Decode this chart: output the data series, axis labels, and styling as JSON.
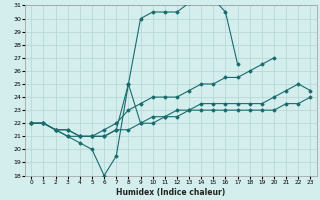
{
  "xlabel": "Humidex (Indice chaleur)",
  "bg_color": "#d4eeee",
  "grid_color": "#b8d8d8",
  "line_color": "#1a6b6b",
  "xlim": [
    -0.5,
    23.5
  ],
  "ylim": [
    18,
    31
  ],
  "xticks": [
    0,
    1,
    2,
    3,
    4,
    5,
    6,
    7,
    8,
    9,
    10,
    11,
    12,
    13,
    14,
    15,
    16,
    17,
    18,
    19,
    20,
    21,
    22,
    23
  ],
  "yticks": [
    18,
    19,
    20,
    21,
    22,
    23,
    24,
    25,
    26,
    27,
    28,
    29,
    30,
    31
  ],
  "lines": [
    {
      "x": [
        0,
        1,
        2,
        3,
        4,
        5,
        6,
        7,
        8,
        9,
        10,
        11,
        12,
        13,
        14,
        15,
        16,
        17
      ],
      "y": [
        22,
        22,
        21.5,
        21,
        20.5,
        20,
        18,
        19.5,
        25,
        30,
        30.5,
        30.5,
        30.5,
        31.2,
        31.5,
        31.5,
        30.5,
        26.5
      ]
    },
    {
      "x": [
        0,
        1,
        2,
        3,
        4,
        5,
        6,
        7,
        8,
        9,
        10,
        11,
        12,
        13,
        14,
        15,
        16,
        17,
        18,
        19,
        20
      ],
      "y": [
        22,
        22,
        21.5,
        21,
        21,
        21,
        21.5,
        22,
        23,
        23.5,
        24,
        24,
        24,
        24.5,
        25,
        25,
        25.5,
        25.5,
        26,
        26.5,
        27
      ]
    },
    {
      "x": [
        0,
        1,
        2,
        3,
        4,
        5,
        6,
        7,
        8,
        9,
        10,
        11,
        12,
        13,
        14,
        15,
        16,
        17,
        18,
        19,
        20,
        21,
        22,
        23
      ],
      "y": [
        22,
        22,
        21.5,
        21.5,
        21,
        21,
        21,
        21.5,
        25,
        22,
        22.5,
        22.5,
        23,
        23,
        23.5,
        23.5,
        23.5,
        23.5,
        23.5,
        23.5,
        24,
        24.5,
        25,
        24.5
      ]
    },
    {
      "x": [
        0,
        1,
        2,
        3,
        4,
        5,
        6,
        7,
        8,
        9,
        10,
        11,
        12,
        13,
        14,
        15,
        16,
        17,
        18,
        19,
        20,
        21,
        22,
        23
      ],
      "y": [
        22,
        22,
        21.5,
        21.5,
        21,
        21,
        21,
        21.5,
        21.5,
        22,
        22,
        22.5,
        22.5,
        23,
        23,
        23,
        23,
        23,
        23,
        23,
        23,
        23.5,
        23.5,
        24
      ]
    }
  ]
}
